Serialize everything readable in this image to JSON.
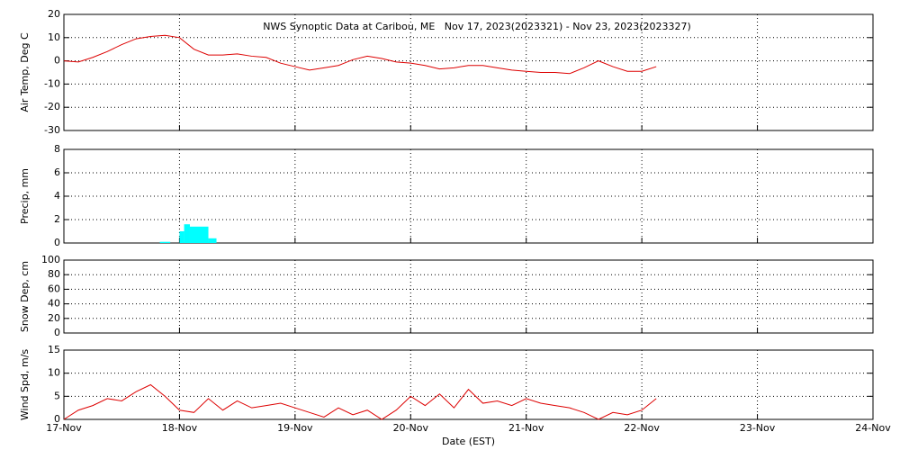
{
  "chart_data": [
    {
      "type": "line",
      "title": "NWS Synoptic Data at Caribou, ME   Nov 17, 2023(2023321) - Nov 23, 2023(2023327)",
      "ylabel": "Air Temp, Deg C",
      "ylim": [
        -30,
        20
      ],
      "yticks": [
        -30,
        -20,
        -10,
        0,
        10,
        20
      ],
      "grid": true,
      "x": [
        0,
        0.125,
        0.25,
        0.375,
        0.5,
        0.625,
        0.75,
        0.875,
        1,
        1.125,
        1.25,
        1.375,
        1.5,
        1.625,
        1.75,
        1.875,
        2,
        2.125,
        2.25,
        2.375,
        2.5,
        2.625,
        2.75,
        2.875,
        3,
        3.125,
        3.25,
        3.375,
        3.5,
        3.625,
        3.75,
        3.875,
        4,
        4.125,
        4.25,
        4.375,
        4.5,
        4.625,
        4.75,
        4.875,
        5,
        5.125
      ],
      "series": [
        {
          "color": "#dd0000",
          "values": [
            0,
            -0.5,
            1.5,
            4,
            7,
            9.5,
            10.5,
            11,
            10,
            5,
            2.5,
            2.5,
            3,
            2,
            1.5,
            -1,
            -2.5,
            -4,
            -3,
            -2,
            0.5,
            2,
            1,
            -0.5,
            -1,
            -2,
            -3.5,
            -3,
            -2,
            -2,
            -3,
            -4,
            -4.5,
            -5,
            -5,
            -5.5,
            -3,
            0,
            -2.5,
            -4.5,
            -4.5,
            -2.5
          ]
        }
      ]
    },
    {
      "type": "histogram",
      "ylabel": "Precip, mm",
      "ylim": [
        0,
        8
      ],
      "yticks": [
        0,
        2,
        4,
        6,
        8
      ],
      "grid": true,
      "color": "#00ffff",
      "bins": [
        0.83,
        0.92,
        1.0,
        1.04,
        1.09,
        1.25,
        1.32
      ],
      "values": [
        0.1,
        0,
        1.0,
        1.6,
        1.4,
        0.4
      ]
    },
    {
      "type": "line",
      "ylabel": "Snow Dep, cm",
      "ylim": [
        0,
        100
      ],
      "yticks": [
        0,
        20,
        40,
        60,
        80,
        100
      ],
      "grid": true
    },
    {
      "type": "line",
      "ylabel": "Wind Spd, m/s",
      "xlabel": "Date (EST)",
      "ylim": [
        0,
        15
      ],
      "yticks": [
        0,
        5,
        10,
        15
      ],
      "grid": true,
      "xlim": [
        0,
        7
      ],
      "xticks": [
        {
          "value": 0,
          "label": "17-Nov"
        },
        {
          "value": 1,
          "label": "18-Nov"
        },
        {
          "value": 2,
          "label": "19-Nov"
        },
        {
          "value": 3,
          "label": "20-Nov"
        },
        {
          "value": 4,
          "label": "21-Nov"
        },
        {
          "value": 5,
          "label": "22-Nov"
        },
        {
          "value": 6,
          "label": "23-Nov"
        },
        {
          "value": 7,
          "label": "24-Nov"
        }
      ],
      "x": [
        0,
        0.125,
        0.25,
        0.375,
        0.5,
        0.625,
        0.75,
        0.875,
        1,
        1.125,
        1.25,
        1.375,
        1.5,
        1.625,
        1.75,
        1.875,
        2,
        2.125,
        2.25,
        2.375,
        2.5,
        2.625,
        2.75,
        2.875,
        3,
        3.125,
        3.25,
        3.375,
        3.5,
        3.625,
        3.75,
        3.875,
        4,
        4.125,
        4.25,
        4.375,
        4.5,
        4.625,
        4.75,
        4.875,
        5,
        5.125
      ],
      "series": [
        {
          "color": "#dd0000",
          "values": [
            0,
            2,
            3,
            4.5,
            4,
            6,
            7.5,
            5,
            2,
            1.5,
            4.5,
            2,
            4,
            2.5,
            3,
            3.5,
            2.5,
            1.5,
            0.5,
            2.5,
            1,
            2,
            0,
            2,
            5,
            3,
            5.5,
            2.5,
            6.5,
            3.5,
            4,
            3,
            4.5,
            3.5,
            3,
            2.5,
            1.5,
            0,
            1.5,
            1,
            2,
            4.5
          ]
        }
      ]
    }
  ]
}
